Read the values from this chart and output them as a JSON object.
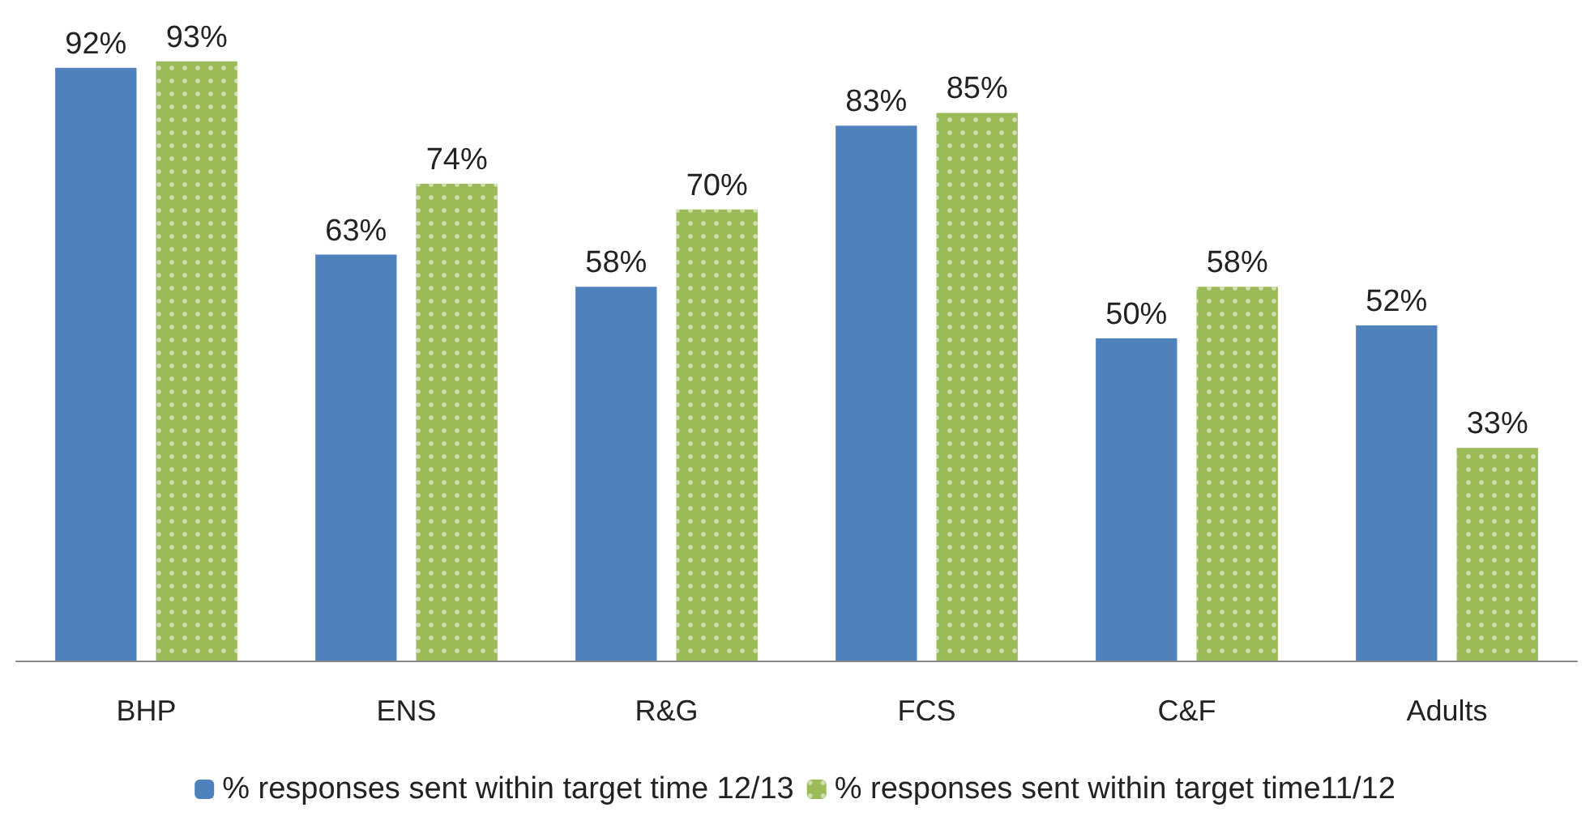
{
  "chart_data": {
    "type": "bar",
    "categories": [
      "BHP",
      "ENS",
      "R&G",
      "FCS",
      "C&F",
      "Adults"
    ],
    "series": [
      {
        "name": "% responses sent within target time 12/13",
        "color": "#4f81bd",
        "values": [
          92,
          63,
          58,
          83,
          50,
          52
        ],
        "value_labels": [
          "92%",
          "63%",
          "58%",
          "83%",
          "50%",
          "52%"
        ]
      },
      {
        "name": "% responses sent within target time11/12",
        "color": "#9bbb59",
        "values": [
          93,
          74,
          70,
          85,
          58,
          33
        ],
        "value_labels": [
          "93%",
          "74%",
          "70%",
          "85%",
          "58%",
          "33%"
        ]
      }
    ],
    "grid": false,
    "legend": "bottom",
    "tick_labels": "x"
  }
}
